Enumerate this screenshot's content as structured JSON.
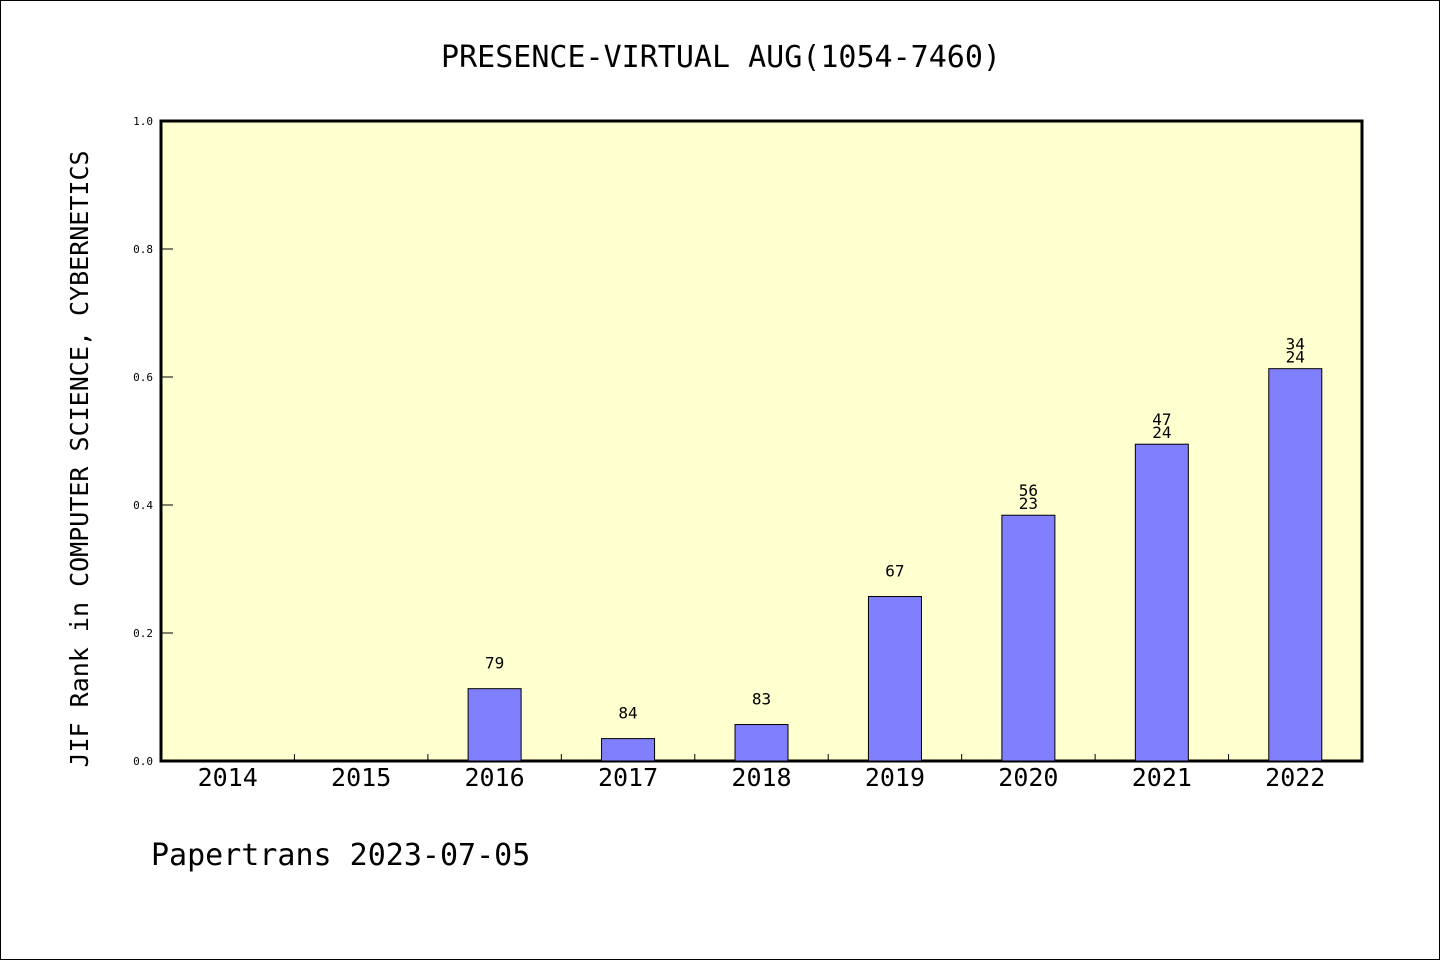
{
  "chart_data": {
    "type": "bar",
    "title": "PRESENCE-VIRTUAL AUG(1054-7460)",
    "ylabel": "JIF Rank in COMPUTER SCIENCE, CYBERNETICS",
    "xlabel": "",
    "categories": [
      "2014",
      "2015",
      "2016",
      "2017",
      "2018",
      "2019",
      "2020",
      "2021",
      "2022"
    ],
    "values": [
      0,
      0,
      0.113,
      0.035,
      0.057,
      0.257,
      0.384,
      0.495,
      0.613
    ],
    "bar_labels": [
      [],
      [],
      [
        "79"
      ],
      [
        "84"
      ],
      [
        "83"
      ],
      [
        "67"
      ],
      [
        "56",
        "23"
      ],
      [
        "47",
        "24"
      ],
      [
        "34",
        "24"
      ]
    ],
    "ylim": [
      0,
      1.0
    ],
    "yticks": [
      "0.0",
      "0.2",
      "0.4",
      "0.6",
      "0.8",
      "1.0"
    ],
    "grid": false,
    "legend": "none",
    "colors": {
      "plot_background": "#ffffd0",
      "bar_fill": "#8080ff",
      "bar_stroke": "#000000",
      "axis": "#000000"
    }
  },
  "footer": {
    "text": "Papertrans 2023-07-05"
  }
}
